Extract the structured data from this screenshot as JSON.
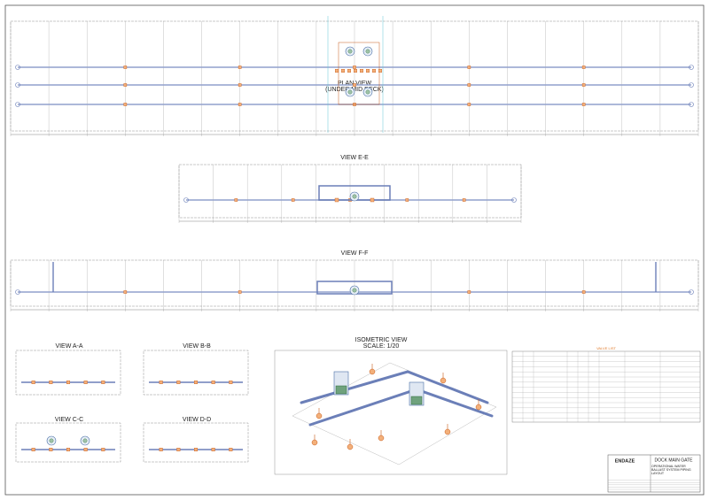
{
  "plan_view": {
    "title": "PLAN VIEW",
    "subtitle": "(UNDER MID DECK)"
  },
  "views": [
    {
      "title": "VIEW E-E"
    },
    {
      "title": "VIEW F-F"
    },
    {
      "title": "VIEW A-A"
    },
    {
      "title": "VIEW B-B"
    },
    {
      "title": "VIEW C-C"
    },
    {
      "title": "VIEW D-D"
    }
  ],
  "isometric": {
    "title": "ISOMETRIC VIEW",
    "scale": "SCALE: 1/20"
  },
  "valve_list": {
    "title": "VALVE LIST"
  },
  "title_block": {
    "company": "ENDAZE",
    "project": "DOCK MAIN GATE",
    "drawing_title": "OPERATIONAL WATER BALLAST SYSTEM PIPING LAYOUT"
  }
}
